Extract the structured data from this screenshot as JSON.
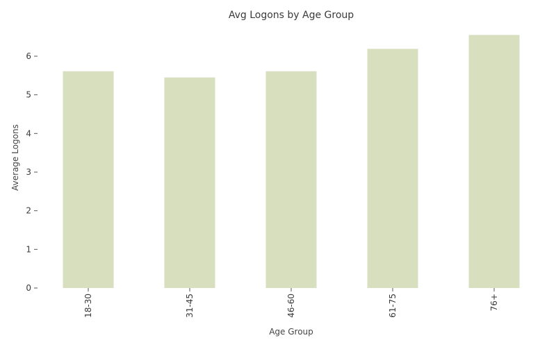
{
  "chart_data": {
    "type": "bar",
    "title": "Avg Logons by Age Group",
    "xlabel": "Age Group",
    "ylabel": "Average Logons",
    "categories": [
      "18-30",
      "31-45",
      "46-60",
      "61-75",
      "76+"
    ],
    "values": [
      5.61,
      5.45,
      5.61,
      6.19,
      6.55
    ],
    "ylim": [
      0,
      6.7
    ],
    "yticks": [
      0,
      1,
      2,
      3,
      4,
      5,
      6
    ],
    "ytick_labels": [
      "0",
      "1",
      "2",
      "3",
      "4",
      "5",
      "6"
    ],
    "bar_color": "#d7dfbf",
    "grid": false,
    "legend": "none"
  }
}
